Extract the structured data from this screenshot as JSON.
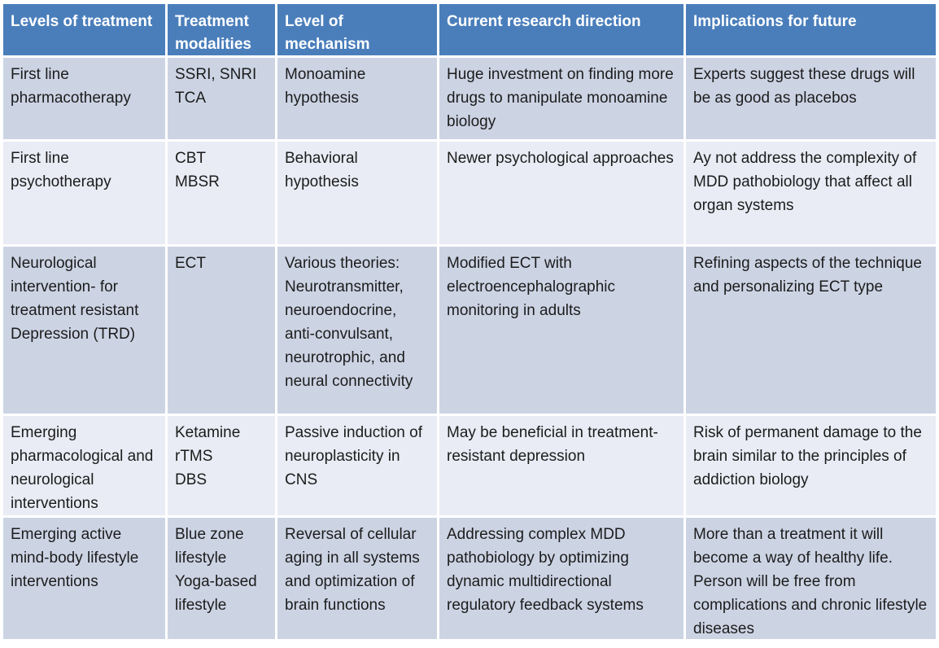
{
  "colors": {
    "header_bg": "#4a7ebb",
    "header_text": "#ffffff",
    "row_dark": "#ccd4e4",
    "row_light": "#e9ecf4",
    "body_text": "#1c1c1c",
    "grid_lines": "#ffffff"
  },
  "table": {
    "headers": [
      "Levels of treatment",
      "Treatment modalities",
      "Level of mechanism",
      "Current research direction",
      "Implications for future"
    ],
    "rows": [
      {
        "cells": [
          "First line pharmacotherapy",
          "SSRI, SNRI\nTCA",
          "Monoamine hypothesis",
          "Huge investment on finding more drugs to manipulate monoamine biology",
          "Experts suggest these drugs will be as good as placebos"
        ]
      },
      {
        "cells": [
          "First line psychotherapy",
          "CBT\nMBSR",
          "Behavioral hypothesis",
          "Newer psychological approaches",
          "Ay not address the complexity of MDD pathobiology that affect all organ systems"
        ]
      },
      {
        "cells": [
          "Neurological intervention- for treatment resistant Depression (TRD)",
          "ECT",
          "Various theories: Neurotransmitter, neuroendocrine, anti-convulsant, neurotrophic, and neural connectivity",
          "Modified ECT with electroencephalographic monitoring in adults",
          "Refining aspects of the technique and personalizing ECT type"
        ]
      },
      {
        "cells": [
          "Emerging pharmacological and neurological interventions",
          "Ketamine\nrTMS\nDBS",
          "Passive induction of neuroplasticity in CNS",
          "May be beneficial in treatment-resistant depression",
          "Risk of permanent damage to the brain similar to the principles of addiction biology"
        ]
      },
      {
        "cells": [
          "Emerging active mind-body lifestyle interventions",
          "Blue zone lifestyle\nYoga-based lifestyle",
          "Reversal of cellular aging in all systems and optimization of brain functions",
          "Addressing complex MDD pathobiology by optimizing dynamic multidirectional regulatory feedback systems",
          "More than a treatment it will become a way of healthy life. Person will be free from complications and chronic lifestyle diseases"
        ]
      }
    ]
  }
}
